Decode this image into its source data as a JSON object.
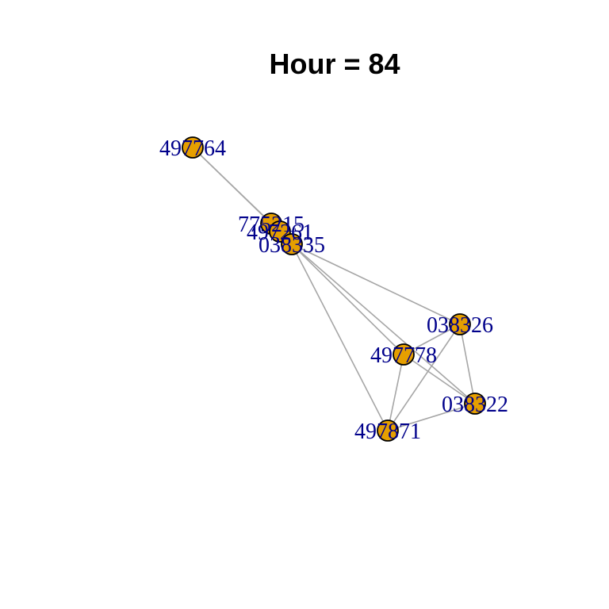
{
  "title": "Hour = 84",
  "nodes": [
    {
      "id": "497764",
      "label": "497764"
    },
    {
      "id": "775215",
      "label": "775215"
    },
    {
      "id": "497261",
      "label": "497261"
    },
    {
      "id": "038335",
      "label": "038335"
    },
    {
      "id": "038326",
      "label": "038326"
    },
    {
      "id": "497778",
      "label": "497778"
    },
    {
      "id": "038322",
      "label": "038322"
    },
    {
      "id": "497871",
      "label": "497871"
    }
  ],
  "edges": [
    [
      "497764",
      "775215"
    ],
    [
      "497764",
      "497261"
    ],
    [
      "775215",
      "497261"
    ],
    [
      "497261",
      "038335"
    ],
    [
      "775215",
      "038335"
    ],
    [
      "038335",
      "038326"
    ],
    [
      "038335",
      "497778"
    ],
    [
      "038335",
      "038322"
    ],
    [
      "038335",
      "497871"
    ],
    [
      "038326",
      "497778"
    ],
    [
      "038326",
      "038322"
    ],
    [
      "038326",
      "497871"
    ],
    [
      "497778",
      "038322"
    ],
    [
      "497778",
      "497871"
    ],
    [
      "038322",
      "497871"
    ]
  ],
  "colors": {
    "node_fill": "#e69f00",
    "node_stroke": "#000000",
    "edge": "#a6a6a6",
    "label": "#00008b",
    "title": "#000000"
  }
}
